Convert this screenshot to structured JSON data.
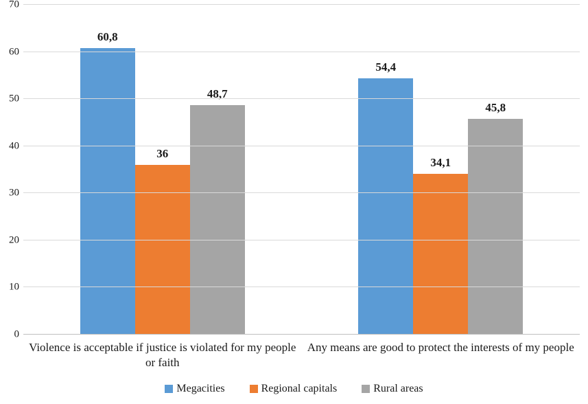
{
  "chart_data": {
    "type": "bar",
    "title": "",
    "categories": [
      "Violence is acceptable if justice is violated for my people or faith",
      "Any means are good to protect the interests of my people"
    ],
    "series": [
      {
        "name": "Megacities",
        "color": "#5B9BD5",
        "values": [
          60.8,
          54.4
        ],
        "labels": [
          "60,8",
          "54,4"
        ]
      },
      {
        "name": "Regional capitals",
        "color": "#ED7D31",
        "values": [
          36,
          34.1
        ],
        "labels": [
          "36",
          "34,1"
        ]
      },
      {
        "name": "Rural areas",
        "color": "#A5A5A5",
        "values": [
          48.7,
          45.8
        ],
        "labels": [
          "48,7",
          "45,8"
        ]
      }
    ],
    "ylim": [
      0,
      70
    ],
    "ytick_step": 10,
    "yticks": [
      0,
      10,
      20,
      30,
      40,
      50,
      60,
      70
    ],
    "grid": true,
    "legend_position": "bottom"
  },
  "colors": {
    "gridline": "#D9D9D9",
    "axis_line": "#BFBFBF",
    "text": "#1a1a1a"
  }
}
